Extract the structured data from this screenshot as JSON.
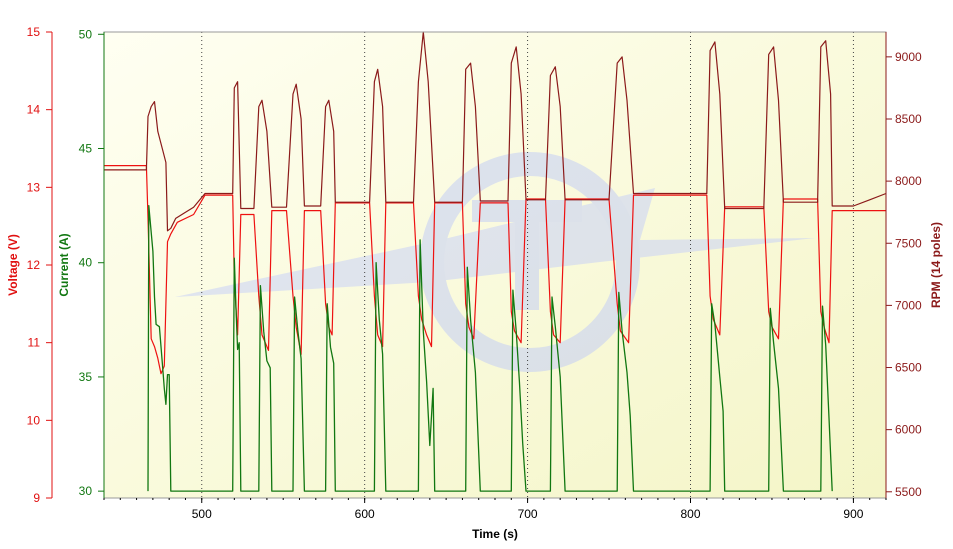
{
  "chart_data": {
    "type": "line",
    "xlabel": "Time (s)",
    "xlim": [
      440,
      920
    ],
    "xticks": [
      500,
      600,
      700,
      800,
      900
    ],
    "gridlines": "vertical dotted",
    "axes": {
      "voltage": {
        "label": "Voltage (V)",
        "range": [
          9,
          15
        ],
        "ticks": [
          9,
          10,
          11,
          12,
          13,
          14,
          15
        ],
        "color": "#e01010"
      },
      "current": {
        "label": "Current (A)",
        "range": [
          29.7,
          50.1
        ],
        "ticks": [
          30,
          35,
          40,
          45,
          50
        ],
        "color": "#117711"
      },
      "rpm": {
        "label": "RPM (14 poles)",
        "range": [
          5450,
          9200
        ],
        "ticks": [
          5500,
          6000,
          6500,
          7000,
          7500,
          8000,
          8500,
          9000
        ],
        "color": "#8b1a1a"
      }
    },
    "pulses": [
      {
        "start": 467,
        "end": 481,
        "peak_rpm": 8640,
        "min_current": 33.8,
        "voltage_after": 12.4
      },
      {
        "start": 519,
        "end": 524,
        "peak_rpm": 8800,
        "min_current": 36.2,
        "voltage_after": 12.65
      },
      {
        "start": 535,
        "end": 543,
        "peak_rpm": 8650,
        "min_current": 35.4,
        "voltage_after": 12.7
      },
      {
        "start": 556,
        "end": 563,
        "peak_rpm": 8780,
        "min_current": 35.6,
        "voltage_after": 12.7
      },
      {
        "start": 576,
        "end": 582,
        "peak_rpm": 8650,
        "min_current": 35.6,
        "voltage_after": 12.8
      },
      {
        "start": 606,
        "end": 613,
        "peak_rpm": 8900,
        "min_current": 35.8,
        "voltage_after": 12.8
      },
      {
        "start": 633,
        "end": 643,
        "peak_rpm": 9200,
        "min_current": 31.9,
        "voltage_after": 12.8
      },
      {
        "start": 662,
        "end": 671,
        "peak_rpm": 8950,
        "min_current": 34.6,
        "voltage_after": 12.8
      },
      {
        "start": 690,
        "end": 699,
        "peak_rpm": 9080,
        "min_current": 32.1,
        "voltage_after": 12.85
      },
      {
        "start": 714,
        "end": 723,
        "peak_rpm": 8920,
        "min_current": 33.5,
        "voltage_after": 12.85
      },
      {
        "start": 755,
        "end": 765,
        "peak_rpm": 9000,
        "min_current": 33.3,
        "voltage_after": 12.9
      },
      {
        "start": 812,
        "end": 821,
        "peak_rpm": 9120,
        "min_current": 33.1,
        "voltage_after": 12.75
      },
      {
        "start": 848,
        "end": 857,
        "peak_rpm": 9080,
        "min_current": 33.8,
        "voltage_after": 12.85
      },
      {
        "start": 880,
        "end": 887,
        "peak_rpm": 9130,
        "min_current": 33.2,
        "voltage_after": 12.7
      }
    ],
    "series": [
      {
        "name": "Voltage (V)",
        "color": "#ee1111",
        "axis": "voltage",
        "points": [
          [
            440,
            13.28
          ],
          [
            466,
            13.28
          ],
          [
            467,
            12.6
          ],
          [
            469,
            11.05
          ],
          [
            471,
            10.95
          ],
          [
            473,
            10.8
          ],
          [
            475,
            10.6
          ],
          [
            477,
            10.7
          ],
          [
            479,
            12.3
          ],
          [
            481,
            12.4
          ],
          [
            485,
            12.55
          ],
          [
            495,
            12.65
          ],
          [
            502,
            12.9
          ],
          [
            519,
            12.9
          ],
          [
            520,
            11.8
          ],
          [
            522,
            11.1
          ],
          [
            524,
            12.65
          ],
          [
            532,
            12.65
          ],
          [
            535,
            11.6
          ],
          [
            537,
            11.1
          ],
          [
            541,
            10.9
          ],
          [
            543,
            12.7
          ],
          [
            552,
            12.7
          ],
          [
            556,
            11.6
          ],
          [
            558,
            11.2
          ],
          [
            561,
            10.85
          ],
          [
            563,
            12.7
          ],
          [
            573,
            12.7
          ],
          [
            576,
            11.5
          ],
          [
            578,
            11.2
          ],
          [
            580,
            11.1
          ],
          [
            582,
            12.8
          ],
          [
            603,
            12.8
          ],
          [
            606,
            11.6
          ],
          [
            608,
            11.1
          ],
          [
            611,
            10.95
          ],
          [
            613,
            12.8
          ],
          [
            630,
            12.8
          ],
          [
            633,
            11.6
          ],
          [
            635,
            11.3
          ],
          [
            638,
            11.1
          ],
          [
            641,
            10.95
          ],
          [
            643,
            12.8
          ],
          [
            660,
            12.8
          ],
          [
            662,
            11.5
          ],
          [
            664,
            11.2
          ],
          [
            667,
            11.05
          ],
          [
            671,
            12.8
          ],
          [
            688,
            12.8
          ],
          [
            690,
            11.4
          ],
          [
            692,
            11.15
          ],
          [
            696,
            11.0
          ],
          [
            699,
            12.85
          ],
          [
            711,
            12.85
          ],
          [
            714,
            11.4
          ],
          [
            716,
            11.1
          ],
          [
            720,
            11.0
          ],
          [
            723,
            12.85
          ],
          [
            750,
            12.85
          ],
          [
            755,
            11.5
          ],
          [
            757,
            11.15
          ],
          [
            762,
            11.0
          ],
          [
            765,
            12.9
          ],
          [
            810,
            12.9
          ],
          [
            812,
            11.6
          ],
          [
            814,
            11.3
          ],
          [
            818,
            11.1
          ],
          [
            821,
            12.75
          ],
          [
            845,
            12.75
          ],
          [
            848,
            11.4
          ],
          [
            850,
            11.2
          ],
          [
            854,
            11.05
          ],
          [
            857,
            12.85
          ],
          [
            878,
            12.85
          ],
          [
            880,
            11.4
          ],
          [
            882,
            11.2
          ],
          [
            885,
            11.0
          ],
          [
            887,
            12.7
          ],
          [
            920,
            12.7
          ]
        ]
      },
      {
        "name": "Current (A)",
        "color": "#117711",
        "axis": "current",
        "points": [
          [
            467,
            30
          ],
          [
            467.5,
            42.5
          ],
          [
            470,
            40.5
          ],
          [
            471,
            38.5
          ],
          [
            472,
            37.3
          ],
          [
            474,
            37.2
          ],
          [
            476,
            35.4
          ],
          [
            477,
            34.5
          ],
          [
            478,
            33.8
          ],
          [
            479,
            35.1
          ],
          [
            480,
            35.1
          ],
          [
            481,
            30
          ],
          [
            519,
            30
          ],
          [
            520,
            40.2
          ],
          [
            521,
            38.0
          ],
          [
            522,
            36.2
          ],
          [
            523,
            36.5
          ],
          [
            524,
            30
          ],
          [
            535,
            30
          ],
          [
            536,
            39.0
          ],
          [
            538,
            37.0
          ],
          [
            540,
            35.7
          ],
          [
            542,
            35.4
          ],
          [
            543,
            30
          ],
          [
            556,
            30
          ],
          [
            557,
            38.5
          ],
          [
            559,
            37.0
          ],
          [
            561,
            35.8
          ],
          [
            563,
            30
          ],
          [
            576,
            30
          ],
          [
            577,
            38.2
          ],
          [
            579,
            36.3
          ],
          [
            581,
            35.6
          ],
          [
            582,
            30
          ],
          [
            606,
            30
          ],
          [
            607,
            40.0
          ],
          [
            609,
            37.5
          ],
          [
            611,
            36.0
          ],
          [
            613,
            30
          ],
          [
            633,
            30
          ],
          [
            634,
            41.0
          ],
          [
            636,
            37.0
          ],
          [
            638,
            34.8
          ],
          [
            640,
            32.0
          ],
          [
            642,
            34.5
          ],
          [
            643,
            30
          ],
          [
            662,
            30
          ],
          [
            663,
            39.8
          ],
          [
            665,
            37.5
          ],
          [
            668,
            35.2
          ],
          [
            671,
            30
          ],
          [
            690,
            30
          ],
          [
            691,
            38.8
          ],
          [
            693,
            37.0
          ],
          [
            695,
            34.8
          ],
          [
            697,
            32.1
          ],
          [
            699,
            30
          ],
          [
            714,
            30
          ],
          [
            715,
            38.5
          ],
          [
            717,
            37.2
          ],
          [
            720,
            35.0
          ],
          [
            723,
            30
          ],
          [
            755,
            30
          ],
          [
            756,
            38.7
          ],
          [
            758,
            37.0
          ],
          [
            761,
            35.2
          ],
          [
            763,
            33.3
          ],
          [
            765,
            30
          ],
          [
            812,
            30
          ],
          [
            813,
            38.2
          ],
          [
            815,
            37.3
          ],
          [
            818,
            35.0
          ],
          [
            820,
            33.5
          ],
          [
            821,
            30
          ],
          [
            848,
            30
          ],
          [
            849,
            38.0
          ],
          [
            851,
            36.5
          ],
          [
            854,
            34.5
          ],
          [
            857,
            30
          ],
          [
            880,
            30
          ],
          [
            881,
            38.1
          ],
          [
            883,
            36.4
          ],
          [
            885,
            33.2
          ],
          [
            887,
            30
          ]
        ]
      },
      {
        "name": "RPM (14 poles)",
        "color": "#8b1a1a",
        "axis": "rpm",
        "points": [
          [
            440,
            8090
          ],
          [
            466,
            8090
          ],
          [
            467,
            8520
          ],
          [
            469,
            8600
          ],
          [
            471,
            8640
          ],
          [
            473,
            8400
          ],
          [
            476,
            8250
          ],
          [
            478,
            8150
          ],
          [
            479,
            7600
          ],
          [
            481,
            7620
          ],
          [
            484,
            7700
          ],
          [
            490,
            7750
          ],
          [
            495,
            7790
          ],
          [
            502,
            7900
          ],
          [
            519,
            7900
          ],
          [
            520,
            8750
          ],
          [
            522,
            8800
          ],
          [
            524,
            7780
          ],
          [
            532,
            7780
          ],
          [
            535,
            8600
          ],
          [
            537,
            8650
          ],
          [
            540,
            8400
          ],
          [
            543,
            7790
          ],
          [
            552,
            7790
          ],
          [
            556,
            8700
          ],
          [
            558,
            8780
          ],
          [
            561,
            8500
          ],
          [
            563,
            7800
          ],
          [
            573,
            7800
          ],
          [
            576,
            8600
          ],
          [
            578,
            8650
          ],
          [
            581,
            8400
          ],
          [
            582,
            7830
          ],
          [
            603,
            7830
          ],
          [
            606,
            8800
          ],
          [
            608,
            8900
          ],
          [
            611,
            8600
          ],
          [
            613,
            7830
          ],
          [
            630,
            7830
          ],
          [
            633,
            8800
          ],
          [
            636,
            9200
          ],
          [
            639,
            8800
          ],
          [
            643,
            7830
          ],
          [
            660,
            7830
          ],
          [
            662,
            8900
          ],
          [
            665,
            8950
          ],
          [
            668,
            8600
          ],
          [
            671,
            7840
          ],
          [
            688,
            7840
          ],
          [
            690,
            8950
          ],
          [
            693,
            9080
          ],
          [
            696,
            8700
          ],
          [
            699,
            7850
          ],
          [
            711,
            7850
          ],
          [
            714,
            8850
          ],
          [
            717,
            8920
          ],
          [
            720,
            8600
          ],
          [
            723,
            7850
          ],
          [
            750,
            7850
          ],
          [
            755,
            8950
          ],
          [
            758,
            9000
          ],
          [
            761,
            8650
          ],
          [
            765,
            7900
          ],
          [
            810,
            7900
          ],
          [
            812,
            9050
          ],
          [
            815,
            9120
          ],
          [
            818,
            8700
          ],
          [
            821,
            7780
          ],
          [
            845,
            7780
          ],
          [
            848,
            9020
          ],
          [
            851,
            9080
          ],
          [
            854,
            8650
          ],
          [
            857,
            7830
          ],
          [
            878,
            7830
          ],
          [
            880,
            9080
          ],
          [
            883,
            9130
          ],
          [
            886,
            8700
          ],
          [
            887,
            7800
          ],
          [
            900,
            7800
          ],
          [
            910,
            7850
          ],
          [
            920,
            7900
          ]
        ]
      }
    ]
  }
}
